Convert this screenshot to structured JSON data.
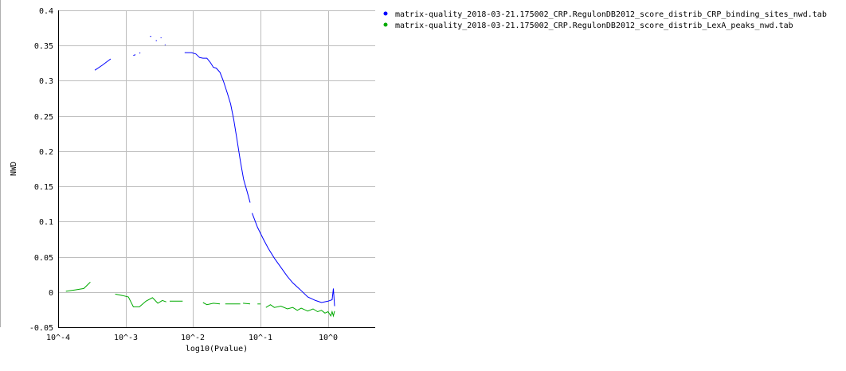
{
  "chart_data": {
    "type": "line",
    "xlabel": "log10(Pvalue)",
    "ylabel": "NWD",
    "x_scale": "log",
    "xlim": [
      0.0001,
      5
    ],
    "ylim": [
      -0.05,
      0.4
    ],
    "grid": true,
    "legend_placement": "top-right",
    "x_tick_values": [
      0.0001,
      0.001,
      0.01,
      0.1,
      1
    ],
    "x_tick_labels": [
      "10^-4",
      "10^-3",
      "10^-2",
      "10^-1",
      "10^0"
    ],
    "y_tick_values": [
      -0.05,
      0,
      0.05,
      0.1,
      0.15,
      0.2,
      0.25,
      0.3,
      0.35,
      0.4
    ],
    "y_tick_labels": [
      "-0.05",
      "0",
      "0.05",
      "0.1",
      "0.15",
      "0.2",
      "0.25",
      "0.3",
      "0.35",
      "0.4"
    ],
    "series": [
      {
        "name": "matrix-quality_2018-03-21.175002_CRP.RegulonDB2012_score_distrib_CRP_binding_sites_nwd.tab",
        "color": "#0000ff",
        "segments": [
          [
            [
              0.00035,
              0.315
            ],
            [
              0.00045,
              0.322
            ],
            [
              0.0006,
              0.331
            ]
          ],
          [
            [
              0.0013,
              0.336
            ],
            [
              0.0014,
              0.337
            ]
          ],
          [
            [
              0.0016,
              0.339
            ],
            [
              0.00165,
              0.34
            ]
          ],
          [
            [
              0.0023,
              0.363
            ],
            [
              0.0024,
              0.363
            ]
          ],
          [
            [
              0.0028,
              0.357
            ],
            [
              0.0029,
              0.357
            ]
          ],
          [
            [
              0.0033,
              0.361
            ],
            [
              0.0034,
              0.361
            ]
          ],
          [
            [
              0.0038,
              0.351
            ],
            [
              0.0039,
              0.351
            ]
          ],
          [
            [
              0.0075,
              0.34
            ],
            [
              0.0095,
              0.34
            ],
            [
              0.011,
              0.338
            ],
            [
              0.0125,
              0.333
            ],
            [
              0.014,
              0.332
            ],
            [
              0.016,
              0.332
            ],
            [
              0.018,
              0.326
            ],
            [
              0.02,
              0.319
            ],
            [
              0.022,
              0.318
            ],
            [
              0.025,
              0.312
            ],
            [
              0.028,
              0.3
            ],
            [
              0.032,
              0.283
            ],
            [
              0.036,
              0.267
            ],
            [
              0.04,
              0.245
            ],
            [
              0.045,
              0.215
            ],
            [
              0.05,
              0.187
            ],
            [
              0.056,
              0.16
            ],
            [
              0.063,
              0.143
            ],
            [
              0.07,
              0.127
            ]
          ],
          [
            [
              0.075,
              0.112
            ],
            [
              0.09,
              0.092
            ],
            [
              0.11,
              0.075
            ],
            [
              0.13,
              0.062
            ],
            [
              0.16,
              0.048
            ],
            [
              0.2,
              0.035
            ],
            [
              0.25,
              0.022
            ],
            [
              0.3,
              0.013
            ],
            [
              0.38,
              0.004
            ],
            [
              0.5,
              -0.007
            ],
            [
              0.65,
              -0.012
            ],
            [
              0.8,
              -0.015
            ],
            [
              1.0,
              -0.013
            ],
            [
              1.15,
              -0.011
            ],
            [
              1.2,
              0.005
            ],
            [
              1.25,
              -0.02
            ]
          ]
        ]
      },
      {
        "name": "matrix-quality_2018-03-21.175002_CRP.RegulonDB2012_score_distrib_LexA_peaks_nwd.tab",
        "color": "#00aa00",
        "segments": [
          [
            [
              0.00013,
              0.001
            ],
            [
              0.00018,
              0.003
            ],
            [
              0.00024,
              0.005
            ],
            [
              0.0003,
              0.014
            ]
          ],
          [
            [
              0.0007,
              -0.003
            ],
            [
              0.0009,
              -0.005
            ],
            [
              0.0011,
              -0.007
            ],
            [
              0.0013,
              -0.021
            ],
            [
              0.0016,
              -0.021
            ],
            [
              0.002,
              -0.013
            ],
            [
              0.0025,
              -0.008
            ],
            [
              0.003,
              -0.016
            ],
            [
              0.0035,
              -0.012
            ],
            [
              0.004,
              -0.014
            ]
          ],
          [
            [
              0.0045,
              -0.013
            ],
            [
              0.007,
              -0.013
            ]
          ],
          [
            [
              0.014,
              -0.015
            ],
            [
              0.016,
              -0.018
            ],
            [
              0.02,
              -0.016
            ],
            [
              0.025,
              -0.017
            ]
          ],
          [
            [
              0.03,
              -0.017
            ],
            [
              0.05,
              -0.017
            ]
          ],
          [
            [
              0.055,
              -0.016
            ],
            [
              0.07,
              -0.017
            ]
          ],
          [
            [
              0.09,
              -0.017
            ],
            [
              0.1,
              -0.017
            ]
          ],
          [
            [
              0.12,
              -0.022
            ],
            [
              0.14,
              -0.018
            ],
            [
              0.16,
              -0.022
            ],
            [
              0.2,
              -0.02
            ],
            [
              0.25,
              -0.024
            ],
            [
              0.3,
              -0.022
            ],
            [
              0.35,
              -0.026
            ],
            [
              0.4,
              -0.023
            ],
            [
              0.5,
              -0.027
            ],
            [
              0.6,
              -0.024
            ],
            [
              0.7,
              -0.028
            ],
            [
              0.8,
              -0.026
            ],
            [
              0.9,
              -0.03
            ],
            [
              1.0,
              -0.028
            ],
            [
              1.1,
              -0.034
            ],
            [
              1.15,
              -0.028
            ],
            [
              1.2,
              -0.034
            ],
            [
              1.25,
              -0.027
            ]
          ]
        ]
      }
    ]
  }
}
